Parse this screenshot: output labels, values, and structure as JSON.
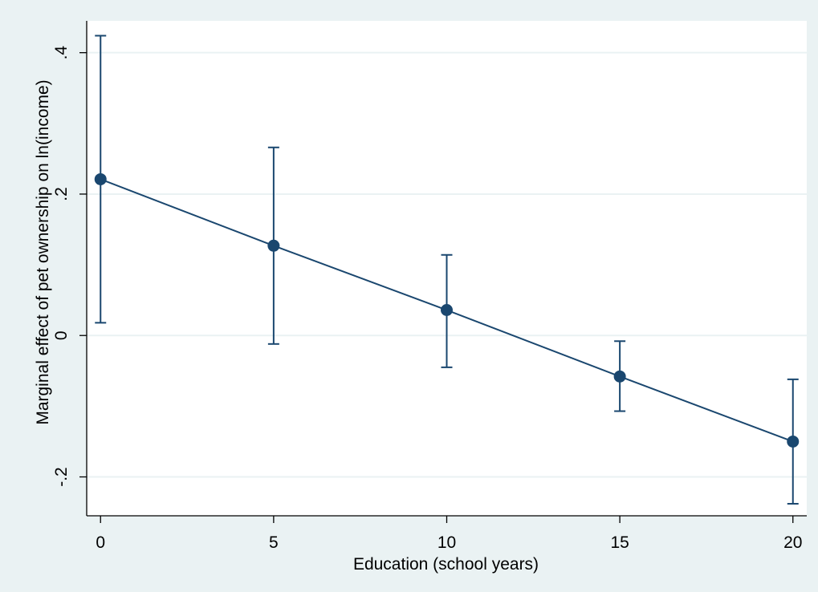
{
  "chart_data": {
    "type": "line",
    "title": "",
    "xlabel": "Education (school years)",
    "ylabel": "Marginal effect of pet ownership on ln(income)",
    "x": [
      0,
      5,
      10,
      15,
      20
    ],
    "x_ticks": [
      0,
      5,
      10,
      15,
      20
    ],
    "x_tick_labels": [
      "0",
      "5",
      "10",
      "15",
      "20"
    ],
    "y_ticks": [
      -0.2,
      0,
      0.2,
      0.4
    ],
    "y_tick_labels": [
      "-.2",
      "0",
      ".2",
      ".4"
    ],
    "xlim": [
      -0.4,
      20.4
    ],
    "ylim": [
      -0.255,
      0.445
    ],
    "grid": true,
    "legend": "none",
    "series": [
      {
        "values": [
          0.221,
          0.127,
          0.036,
          -0.058,
          -0.15
        ],
        "ci_lower": [
          0.018,
          -0.012,
          -0.045,
          -0.107,
          -0.238
        ],
        "ci_upper": [
          0.424,
          0.266,
          0.114,
          -0.008,
          -0.062
        ]
      }
    ],
    "colors": {
      "line": "#1a476f",
      "marker": "#1a476f",
      "outer_background": "#eaf2f3",
      "plot_background": "#ffffff",
      "grid": "#eaf2f3"
    }
  }
}
